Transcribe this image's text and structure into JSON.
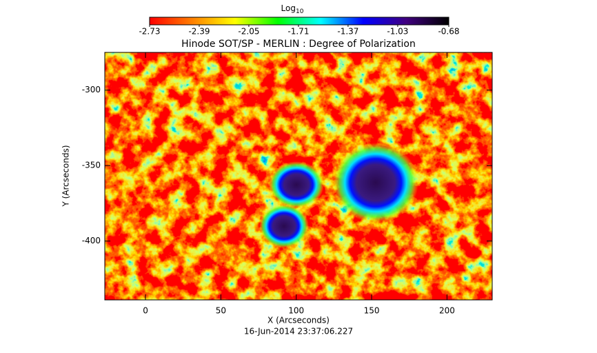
{
  "chart_data": {
    "type": "heatmap",
    "title": "Hinode SOT/SP - MERLIN : Degree of Polarization",
    "x_label": "X (Arcseconds)",
    "y_label": "Y (Arcseconds)",
    "footer": "16-Jun-2014 23:37:06.227",
    "xlim": [
      -27,
      230
    ],
    "xticks": [
      0,
      50,
      100,
      150,
      200
    ],
    "ylim": [
      -439,
      -275
    ],
    "yticks": [
      -300,
      -350,
      -400
    ],
    "colorbar_label": "Log",
    "colorbar_label_sub": "10",
    "colorbar_lim": [
      -2.73,
      -0.68
    ],
    "colorbar_ticks": [
      -2.73,
      -2.39,
      -2.05,
      -1.71,
      -1.37,
      -1.03,
      -0.68
    ],
    "colormap": [
      "#ff0000",
      "#ff8000",
      "#ffff00",
      "#00ff00",
      "#00ffff",
      "#0000ff",
      "#400080",
      "#000000"
    ]
  }
}
